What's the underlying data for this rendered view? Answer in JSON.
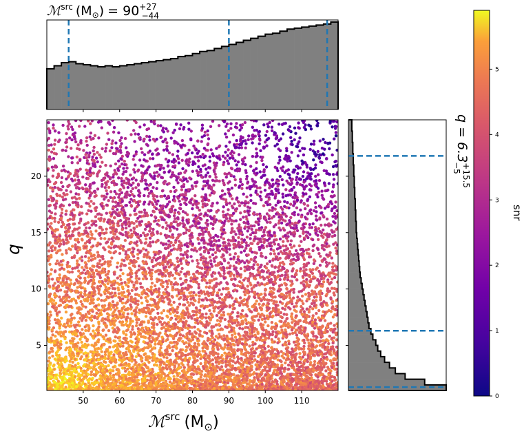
{
  "chart_data": [
    {
      "type": "scatter",
      "panel": "joint",
      "xlabel": "ℳ",
      "xlabel_sup": "src",
      "xlabel_unit": "(M",
      "xlabel_unit_sub": "⊙",
      "xlabel_close": ")",
      "ylabel": "q",
      "xlim": [
        40,
        120
      ],
      "ylim": [
        1,
        25
      ],
      "x_ticks": [
        50,
        60,
        70,
        80,
        90,
        100,
        110
      ],
      "y_ticks": [
        5,
        10,
        15,
        20
      ],
      "color_by": "snr",
      "colormap": "plasma",
      "density_description": [
        {
          "x": 45,
          "y": 1.5,
          "snr": 5.6
        },
        {
          "x": 60,
          "y": 2.5,
          "snr": 4.4
        },
        {
          "x": 60,
          "y": 9,
          "snr": 4.0
        },
        {
          "x": 105,
          "y": 8,
          "snr": 3.8
        },
        {
          "x": 90,
          "y": 15,
          "snr": 2.4
        },
        {
          "x": 80,
          "y": 22,
          "snr": 1.8
        },
        {
          "x": 115,
          "y": 23,
          "snr": 0.5
        }
      ]
    },
    {
      "type": "histogram",
      "panel": "top-marginal",
      "variable": "ℳ_src",
      "bin_edges": [
        40,
        42,
        44,
        46,
        48,
        50,
        52,
        54,
        56,
        58,
        60,
        62,
        64,
        66,
        68,
        70,
        72,
        74,
        76,
        78,
        80,
        82,
        84,
        86,
        88,
        90,
        92,
        94,
        96,
        98,
        100,
        102,
        104,
        106,
        108,
        110,
        112,
        114,
        116,
        118,
        120
      ],
      "heights": [
        0.4,
        0.43,
        0.46,
        0.47,
        0.45,
        0.44,
        0.43,
        0.42,
        0.43,
        0.42,
        0.43,
        0.44,
        0.45,
        0.46,
        0.47,
        0.48,
        0.49,
        0.5,
        0.52,
        0.53,
        0.55,
        0.57,
        0.58,
        0.6,
        0.62,
        0.64,
        0.66,
        0.68,
        0.7,
        0.72,
        0.74,
        0.75,
        0.77,
        0.79,
        0.8,
        0.81,
        0.82,
        0.83,
        0.84,
        0.86
      ],
      "quantile_lines": [
        46,
        90,
        117
      ]
    },
    {
      "type": "histogram",
      "panel": "right-marginal",
      "orientation": "horizontal",
      "variable": "q",
      "bin_edges": [
        1,
        1.5,
        2,
        2.5,
        3,
        3.5,
        4,
        4.5,
        5,
        5.5,
        6,
        6.5,
        7,
        7.5,
        8,
        8.5,
        9,
        9.5,
        10,
        10.5,
        11,
        11.5,
        12,
        12.5,
        13,
        13.5,
        14,
        14.5,
        15,
        16,
        17,
        18,
        19,
        20,
        21,
        22,
        23,
        24,
        25
      ],
      "heights": [
        1.0,
        0.78,
        0.58,
        0.48,
        0.42,
        0.37,
        0.33,
        0.3,
        0.28,
        0.25,
        0.23,
        0.21,
        0.2,
        0.19,
        0.18,
        0.17,
        0.16,
        0.15,
        0.14,
        0.13,
        0.12,
        0.115,
        0.11,
        0.105,
        0.1,
        0.095,
        0.09,
        0.085,
        0.08,
        0.075,
        0.07,
        0.065,
        0.06,
        0.055,
        0.05,
        0.045,
        0.04,
        0.035
      ],
      "quantile_lines": [
        1.3,
        6.3,
        21.8
      ]
    },
    {
      "type": "colorbar",
      "label": "snr",
      "range": [
        0,
        5.9
      ],
      "ticks": [
        0,
        1,
        2,
        3,
        4,
        5
      ]
    }
  ],
  "top_title": {
    "symbol": "ℳ",
    "sup": "src",
    "unit_open": "(M",
    "unit_sub": "⊙",
    "unit_close": ")",
    "equals": "= 90",
    "plus": "+27",
    "minus": "−44"
  },
  "right_title": {
    "text": "q = 6.3",
    "plus": "+15.5",
    "minus": "−5"
  },
  "colors": {
    "histogram_fill": "#808080",
    "histogram_edge": "#000000",
    "quantile_line": "#1f77b4"
  }
}
